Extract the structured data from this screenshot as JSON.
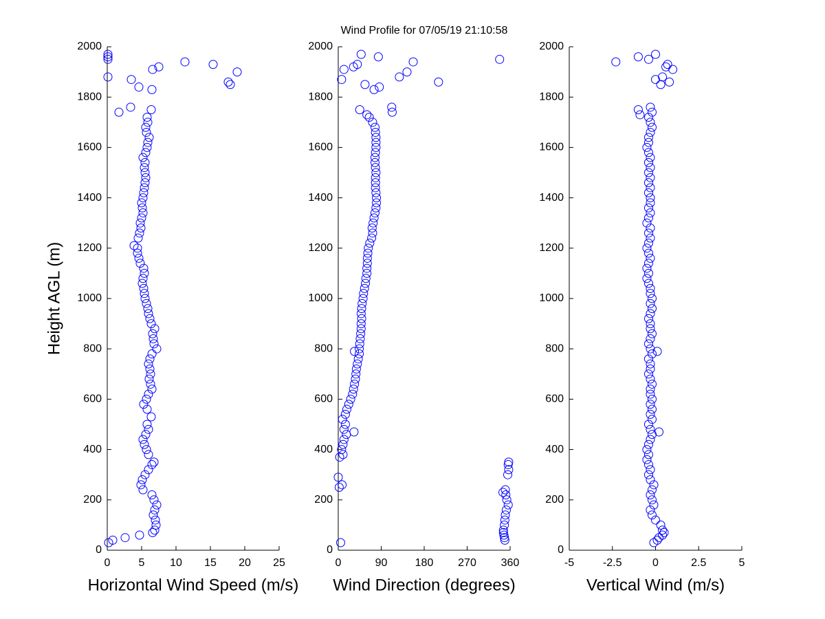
{
  "title": "Wind Profile for  07/05/19 21:10:58",
  "chart_data": [
    {
      "type": "scatter",
      "xlabel": "Horizontal Wind Speed (m/s)",
      "ylabel": "Height AGL (m)",
      "color": "#0000ff",
      "xlim": [
        0,
        25
      ],
      "xticks": [
        0,
        5,
        10,
        15,
        20,
        25
      ],
      "ylim": [
        0,
        2000
      ],
      "yticks": [
        0,
        200,
        400,
        600,
        800,
        1000,
        1200,
        1400,
        1600,
        1800,
        2000
      ],
      "x": [
        0.2,
        0.8,
        2.6,
        4.7,
        6.6,
        6.9,
        7.1,
        7.0,
        6.7,
        6.9,
        7.2,
        6.8,
        6.5,
        5.2,
        4.9,
        5.1,
        5.5,
        6.0,
        6.5,
        6.8,
        6.0,
        5.7,
        5.4,
        5.2,
        5.6,
        6.0,
        5.8,
        6.4,
        5.8,
        5.3,
        5.7,
        6.0,
        6.5,
        6.3,
        6.1,
        6.3,
        6.2,
        6.0,
        6.2,
        6.5,
        7.2,
        6.8,
        6.7,
        6.6,
        6.9,
        6.4,
        6.2,
        6.0,
        5.9,
        5.7,
        5.5,
        5.4,
        5.3,
        5.1,
        5.2,
        5.4,
        5.3,
        4.8,
        4.6,
        4.4,
        4.4,
        3.9,
        4.5,
        4.7,
        4.9,
        4.8,
        5.0,
        5.2,
        5.1,
        5.0,
        5.2,
        5.3,
        5.4,
        5.5,
        5.6,
        5.5,
        5.4,
        5.5,
        5.2,
        5.6,
        5.8,
        5.9,
        6.1,
        5.7,
        5.6,
        5.9,
        5.8,
        1.7,
        6.4,
        3.4,
        6.5,
        4.6,
        17.9,
        17.6,
        3.5,
        0.1,
        18.9,
        6.6,
        7.5,
        15.4,
        11.3,
        0.1,
        0.1,
        0.1
      ],
      "y": [
        30,
        40,
        50,
        60,
        70,
        80,
        100,
        120,
        140,
        160,
        180,
        200,
        220,
        240,
        260,
        280,
        300,
        320,
        340,
        350,
        380,
        400,
        420,
        440,
        460,
        480,
        500,
        530,
        560,
        580,
        600,
        620,
        640,
        660,
        680,
        700,
        720,
        740,
        760,
        780,
        800,
        820,
        840,
        860,
        880,
        900,
        920,
        940,
        960,
        980,
        1000,
        1020,
        1040,
        1060,
        1080,
        1100,
        1120,
        1140,
        1160,
        1180,
        1200,
        1210,
        1240,
        1260,
        1280,
        1300,
        1320,
        1340,
        1360,
        1380,
        1400,
        1420,
        1440,
        1460,
        1480,
        1500,
        1520,
        1540,
        1560,
        1580,
        1600,
        1620,
        1640,
        1660,
        1680,
        1700,
        1720,
        1740,
        1750,
        1760,
        1830,
        1840,
        1850,
        1860,
        1870,
        1880,
        1900,
        1910,
        1920,
        1930,
        1940,
        1950,
        1960,
        1970
      ]
    },
    {
      "type": "scatter",
      "xlabel": "Wind Direction (degrees)",
      "color": "#0000ff",
      "xlim": [
        0,
        360
      ],
      "xticks": [
        0,
        90,
        180,
        270,
        360
      ],
      "ylim": [
        0,
        2000
      ],
      "yticks": [
        0,
        200,
        400,
        600,
        800,
        1000,
        1200,
        1400,
        1600,
        1800,
        2000
      ],
      "x": [
        5,
        349,
        348,
        347,
        346,
        346,
        348,
        349,
        350,
        352,
        356,
        353,
        351,
        345,
        350,
        2,
        8,
        0,
        355,
        357,
        356,
        357,
        3,
        10,
        7,
        10,
        12,
        17,
        33,
        12,
        15,
        9,
        15,
        18,
        22,
        26,
        30,
        32,
        34,
        36,
        37,
        38,
        40,
        42,
        44,
        34,
        44,
        45,
        46,
        47,
        48,
        48,
        49,
        48,
        49,
        50,
        52,
        53,
        55,
        57,
        58,
        60,
        60,
        61,
        61,
        62,
        63,
        66,
        70,
        72,
        71,
        73,
        75,
        77,
        79,
        80,
        80,
        79,
        78,
        78,
        78,
        79,
        78,
        77,
        77,
        78,
        79,
        79,
        79,
        78,
        77,
        72,
        65,
        60,
        113,
        45,
        112,
        75,
        86,
        56,
        210,
        7,
        128,
        144,
        12,
        32,
        40,
        157,
        338,
        84,
        48
      ],
      "y": [
        30,
        40,
        50,
        60,
        70,
        80,
        100,
        120,
        140,
        160,
        180,
        200,
        220,
        230,
        240,
        250,
        260,
        290,
        300,
        320,
        340,
        350,
        370,
        380,
        400,
        420,
        440,
        460,
        470,
        480,
        500,
        520,
        540,
        560,
        580,
        600,
        620,
        640,
        660,
        680,
        700,
        720,
        740,
        760,
        780,
        790,
        800,
        820,
        840,
        860,
        880,
        900,
        920,
        940,
        960,
        980,
        1000,
        1020,
        1040,
        1060,
        1080,
        1100,
        1120,
        1140,
        1160,
        1180,
        1200,
        1220,
        1240,
        1260,
        1280,
        1300,
        1320,
        1340,
        1360,
        1380,
        1400,
        1420,
        1440,
        1460,
        1480,
        1500,
        1520,
        1540,
        1560,
        1580,
        1600,
        1620,
        1640,
        1660,
        1680,
        1700,
        1720,
        1730,
        1740,
        1750,
        1760,
        1830,
        1840,
        1850,
        1860,
        1870,
        1880,
        1900,
        1910,
        1920,
        1930,
        1940,
        1950,
        1960,
        1970
      ]
    },
    {
      "type": "scatter",
      "xlabel": "Vertical Wind (m/s)",
      "color": "#0000ff",
      "xlim": [
        -5,
        5
      ],
      "xticks": [
        -5,
        -2.5,
        0,
        2.5,
        5
      ],
      "ylim": [
        0,
        2000
      ],
      "yticks": [
        0,
        200,
        400,
        600,
        800,
        1000,
        1200,
        1400,
        1600,
        1800,
        2000
      ],
      "x": [
        -0.1,
        0.1,
        0.2,
        0.4,
        0.5,
        0.4,
        0.3,
        0.0,
        -0.2,
        -0.3,
        -0.1,
        -0.2,
        -0.3,
        -0.2,
        -0.1,
        -0.3,
        -0.4,
        -0.3,
        -0.4,
        -0.5,
        -0.4,
        -0.5,
        -0.4,
        -0.3,
        -0.2,
        0.2,
        -0.3,
        -0.4,
        -0.2,
        -0.3,
        -0.2,
        -0.3,
        -0.2,
        -0.3,
        -0.3,
        -0.2,
        -0.3,
        -0.4,
        -0.3,
        -0.3,
        -0.4,
        -0.2,
        0.1,
        -0.3,
        -0.4,
        -0.3,
        -0.2,
        -0.3,
        -0.3,
        -0.4,
        -0.3,
        -0.2,
        -0.3,
        -0.2,
        -0.3,
        -0.3,
        -0.4,
        -0.5,
        -0.4,
        -0.5,
        -0.4,
        -0.3,
        -0.4,
        -0.5,
        -0.4,
        -0.3,
        -0.4,
        -0.3,
        -0.5,
        -0.4,
        -0.3,
        -0.4,
        -0.3,
        -0.3,
        -0.4,
        -0.3,
        -0.4,
        -0.3,
        -0.4,
        -0.3,
        -0.4,
        -0.3,
        -0.4,
        -0.5,
        -0.4,
        -0.4,
        -0.3,
        -0.2,
        -0.3,
        -0.4,
        -0.9,
        -0.2,
        -1.0,
        -0.3,
        0.3,
        0.8,
        0.0,
        0.4,
        1.0,
        0.6,
        0.7,
        -2.3,
        -0.4,
        -1.0,
        0.0
      ],
      "y": [
        30,
        40,
        50,
        60,
        70,
        80,
        100,
        120,
        140,
        160,
        180,
        200,
        220,
        240,
        260,
        280,
        300,
        320,
        340,
        360,
        380,
        400,
        420,
        440,
        460,
        470,
        480,
        500,
        520,
        540,
        560,
        580,
        600,
        620,
        640,
        660,
        680,
        700,
        720,
        740,
        760,
        780,
        790,
        800,
        820,
        840,
        860,
        880,
        900,
        920,
        940,
        960,
        980,
        1000,
        1020,
        1040,
        1060,
        1080,
        1100,
        1120,
        1140,
        1160,
        1180,
        1200,
        1220,
        1240,
        1260,
        1280,
        1300,
        1320,
        1340,
        1360,
        1380,
        1400,
        1420,
        1440,
        1460,
        1480,
        1500,
        1520,
        1540,
        1560,
        1580,
        1600,
        1620,
        1640,
        1660,
        1680,
        1700,
        1720,
        1730,
        1740,
        1750,
        1760,
        1850,
        1860,
        1870,
        1880,
        1910,
        1920,
        1930,
        1940,
        1950,
        1960,
        1970
      ]
    }
  ]
}
